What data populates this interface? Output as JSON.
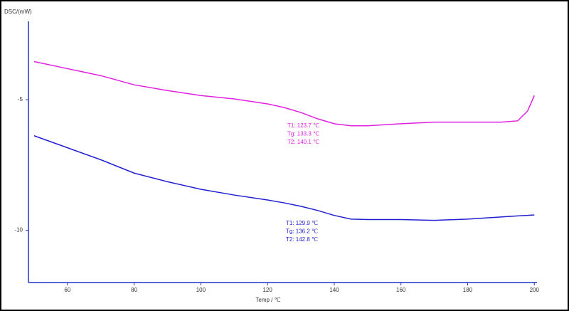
{
  "chart_data": {
    "type": "line",
    "y_label": "DSC/(mW)",
    "x_label": "Temp / ℃",
    "x": [
      50,
      60,
      70,
      80,
      90,
      100,
      110,
      120,
      125,
      130,
      135,
      140,
      145,
      150,
      160,
      170,
      180,
      190,
      195,
      198,
      200
    ],
    "series": [
      {
        "color": "#e020e0",
        "values": [
          -3.54,
          -3.81,
          -4.08,
          -4.43,
          -4.65,
          -4.84,
          -4.97,
          -5.16,
          -5.3,
          -5.49,
          -5.73,
          -5.92,
          -6.0,
          -6.0,
          -5.92,
          -5.86,
          -5.86,
          -5.86,
          -5.81,
          -5.43,
          -4.84
        ],
        "annotations": [
          "T1:  123.7 ℃",
          "Tg:  133.3 ℃",
          "T2:  140.1 ℃"
        ]
      },
      {
        "color": "#2020d0",
        "values": [
          -6.38,
          -6.84,
          -7.3,
          -7.81,
          -8.14,
          -8.43,
          -8.65,
          -8.84,
          -8.95,
          -9.08,
          -9.24,
          -9.43,
          -9.57,
          -9.59,
          -9.59,
          -9.62,
          -9.57,
          -9.49,
          -9.45,
          -9.43,
          -9.41
        ],
        "annotations": [
          "T1:  129.9 ℃",
          "Tg:  136.2 ℃",
          "T2:  142.8 ℃"
        ]
      }
    ],
    "xlim": [
      48.3,
      200.8
    ],
    "xticks": [
      60,
      80,
      100,
      120,
      140,
      160,
      180,
      200
    ],
    "ylim": [
      -12,
      -2
    ],
    "yticks": [
      -5,
      -10
    ]
  }
}
